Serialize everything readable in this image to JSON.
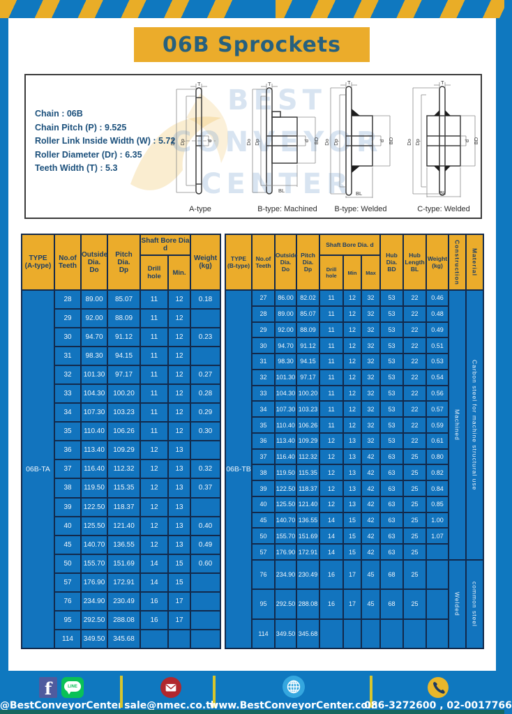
{
  "page": {
    "title": "06B Sprockets"
  },
  "specs": {
    "lines": [
      "Chain : 06B",
      "Chain Pitch (P) : 9.525",
      "Roller Link Inside Width (W) : 5.72",
      "Roller Diameter (Dr) : 6.35",
      "Teeth Width (T) : 5.3"
    ]
  },
  "diagram": {
    "captions": [
      "A-type",
      "B-type: Machined",
      "B-type: Welded",
      "C-type: Welded"
    ],
    "dims": {
      "t": "T",
      "outer": "Do",
      "pitch": "Dp",
      "bore": "d",
      "hub": "BD",
      "hublen": "BL"
    },
    "watermark": {
      "line1": "BEST",
      "line2": "CONVEYOR",
      "line3": "CENTER"
    }
  },
  "table_a": {
    "type_label": "06B-TA",
    "header": {
      "type": "TYPE\n(A-type)",
      "teeth": "No.of\nTeeth",
      "outside": "Outside\nDia.\nDo",
      "pitch": "Pitch Dia.\nDp",
      "shaft_group": "Shaft Bore Dia d",
      "drill": "Drill hole",
      "min": "Min.",
      "weight": "Weight\n(kg)"
    },
    "header_rows": [
      [
        {
          "key": "type",
          "rs": 2
        },
        {
          "key": "teeth",
          "rs": 2
        },
        {
          "key": "outside",
          "rs": 2
        },
        {
          "key": "pitch",
          "rs": 2
        },
        {
          "key": "shaft_group",
          "cs": 2
        },
        {
          "key": "weight",
          "rs": 2
        }
      ],
      [
        {
          "key": "drill"
        },
        {
          "key": "min"
        }
      ]
    ],
    "rows": [
      [
        "28",
        "89.00",
        "85.07",
        "11",
        "12",
        "0.18"
      ],
      [
        "29",
        "92.00",
        "88.09",
        "11",
        "12",
        ""
      ],
      [
        "30",
        "94.70",
        "91.12",
        "11",
        "12",
        "0.23"
      ],
      [
        "31",
        "98.30",
        "94.15",
        "11",
        "12",
        ""
      ],
      [
        "32",
        "101.30",
        "97.17",
        "11",
        "12",
        "0.27"
      ],
      [
        "33",
        "104.30",
        "100.20",
        "11",
        "12",
        "0.28"
      ],
      [
        "34",
        "107.30",
        "103.23",
        "11",
        "12",
        "0.29"
      ],
      [
        "35",
        "110.40",
        "106.26",
        "11",
        "12",
        "0.30"
      ],
      [
        "36",
        "113.40",
        "109.29",
        "12",
        "13",
        ""
      ],
      [
        "37",
        "116.40",
        "112.32",
        "12",
        "13",
        "0.32"
      ],
      [
        "38",
        "119.50",
        "115.35",
        "12",
        "13",
        "0.37"
      ],
      [
        "39",
        "122.50",
        "118.37",
        "12",
        "13",
        ""
      ],
      [
        "40",
        "125.50",
        "121.40",
        "12",
        "13",
        "0.40"
      ],
      [
        "45",
        "140.70",
        "136.55",
        "12",
        "13",
        "0.49"
      ],
      [
        "50",
        "155.70",
        "151.69",
        "14",
        "15",
        "0.60"
      ],
      [
        "57",
        "176.90",
        "172.91",
        "14",
        "15",
        ""
      ],
      [
        "76",
        "234.90",
        "230.49",
        "16",
        "17",
        ""
      ],
      [
        "95",
        "292.50",
        "288.08",
        "16",
        "17",
        ""
      ],
      [
        "114",
        "349.50",
        "345.68",
        "",
        "",
        ""
      ]
    ]
  },
  "table_b": {
    "type_label": "06B-TB",
    "header": {
      "type": "TYPE\n(B-type)",
      "teeth": "No.of\nTeeth",
      "outside": "Outside\nDia.\nDo",
      "pitch": "Pitch\nDia.\nDp",
      "shaft_group": "Shaft Bore Dia. d",
      "drill": "Drill hole",
      "min": "Min",
      "max": "Max",
      "hub_dia": "Hub\nDia.\nBD",
      "hub_len": "Hub\nLength\nBL",
      "weight": "Weight\n(kg)",
      "construction": "Construction",
      "material": "Material"
    },
    "header_rows": [
      [
        {
          "key": "type",
          "rs": 2
        },
        {
          "key": "teeth",
          "rs": 2
        },
        {
          "key": "outside",
          "rs": 2
        },
        {
          "key": "pitch",
          "rs": 2
        },
        {
          "key": "shaft_group",
          "cs": 3
        },
        {
          "key": "hub_dia",
          "rs": 2
        },
        {
          "key": "hub_len",
          "rs": 2
        },
        {
          "key": "weight",
          "rs": 2
        },
        {
          "key": "construction",
          "rs": 2,
          "vert": true
        },
        {
          "key": "material",
          "rs": 2,
          "vert": true
        }
      ],
      [
        {
          "key": "drill"
        },
        {
          "key": "min"
        },
        {
          "key": "max"
        }
      ]
    ],
    "rows": [
      [
        "27",
        "86.00",
        "82.02",
        "11",
        "12",
        "32",
        "53",
        "22",
        "0.46"
      ],
      [
        "28",
        "89.00",
        "85.07",
        "11",
        "12",
        "32",
        "53",
        "22",
        "0.48"
      ],
      [
        "29",
        "92.00",
        "88.09",
        "11",
        "12",
        "32",
        "53",
        "22",
        "0.49"
      ],
      [
        "30",
        "94.70",
        "91.12",
        "11",
        "12",
        "32",
        "53",
        "22",
        "0.51"
      ],
      [
        "31",
        "98.30",
        "94.15",
        "11",
        "12",
        "32",
        "53",
        "22",
        "0.53"
      ],
      [
        "32",
        "101.30",
        "97.17",
        "11",
        "12",
        "32",
        "53",
        "22",
        "0.54"
      ],
      [
        "33",
        "104.30",
        "100.20",
        "11",
        "12",
        "32",
        "53",
        "22",
        "0.56"
      ],
      [
        "34",
        "107.30",
        "103.23",
        "11",
        "12",
        "32",
        "53",
        "22",
        "0.57"
      ],
      [
        "35",
        "110.40",
        "106.26",
        "11",
        "12",
        "32",
        "53",
        "22",
        "0.59"
      ],
      [
        "36",
        "113.40",
        "109.29",
        "12",
        "13",
        "32",
        "53",
        "22",
        "0.61"
      ],
      [
        "37",
        "116.40",
        "112.32",
        "12",
        "13",
        "42",
        "63",
        "25",
        "0.80"
      ],
      [
        "38",
        "119.50",
        "115.35",
        "12",
        "13",
        "42",
        "63",
        "25",
        "0.82"
      ],
      [
        "39",
        "122.50",
        "118.37",
        "12",
        "13",
        "42",
        "63",
        "25",
        "0.84"
      ],
      [
        "40",
        "125.50",
        "121.40",
        "12",
        "13",
        "42",
        "63",
        "25",
        "0.85"
      ],
      [
        "45",
        "140.70",
        "136.55",
        "14",
        "15",
        "42",
        "63",
        "25",
        "1.00"
      ],
      [
        "50",
        "155.70",
        "151.69",
        "14",
        "15",
        "42",
        "63",
        "25",
        "1.07"
      ],
      [
        "57",
        "176.90",
        "172.91",
        "14",
        "15",
        "42",
        "63",
        "25",
        ""
      ],
      [
        "76",
        "234.90",
        "230.49",
        "16",
        "17",
        "45",
        "68",
        "25",
        ""
      ],
      [
        "95",
        "292.50",
        "288.08",
        "16",
        "17",
        "45",
        "68",
        "25",
        ""
      ],
      [
        "114",
        "349.50",
        "345.68",
        "",
        "",
        "",
        "",
        "",
        ""
      ]
    ],
    "side_segments": [
      {
        "name": "construction-cell",
        "segments": [
          {
            "label": "Machined",
            "rows": 17
          },
          {
            "label": "Welded",
            "rows": 3
          }
        ]
      },
      {
        "name": "material-cell",
        "segments": [
          {
            "label": "Carbon steel for machine structural use",
            "rows": 17
          },
          {
            "label": "common steel",
            "rows": 3
          }
        ]
      }
    ]
  },
  "footer": {
    "social": {
      "label": "@BestConveyorCenter"
    },
    "email": {
      "label": "sale@nmec.co.th"
    },
    "website": {
      "label": "www.BestConveyorCenter.com"
    },
    "phone": {
      "label": "086-3272600 , 02-0017766"
    },
    "line_badge": "LINE",
    "facebook_letter": "f"
  },
  "colors": {
    "frame_blue": "#0F78BF",
    "gold": "#EBAC2B",
    "cell_blue": "#1274BE",
    "border_navy": "#12294B",
    "header_text": "#1D3D63",
    "title_text": "#26607E",
    "divider_yellow": "#D8C62C"
  }
}
